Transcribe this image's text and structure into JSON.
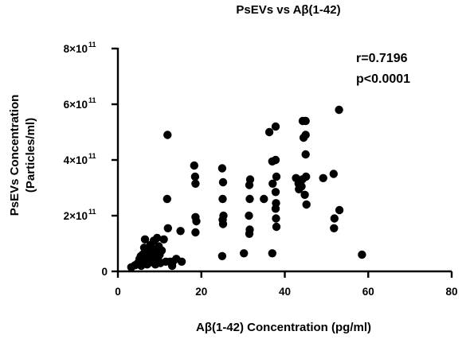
{
  "chart_data": {
    "type": "scatter",
    "title": "PsEVs vs Aβ(1-42)",
    "xlabel": "Aβ(1-42) Concentration (pg/ml)",
    "ylabel_line1": "PsEVs Concentration",
    "ylabel_line2": "(Particles/ml)",
    "xlim": [
      0,
      80
    ],
    "ylim": [
      0,
      800000000000.0
    ],
    "x_ticks": [
      {
        "value": 0,
        "label": "0"
      },
      {
        "value": 20,
        "label": "20"
      },
      {
        "value": 40,
        "label": "40"
      },
      {
        "value": 60,
        "label": "60"
      },
      {
        "value": 80,
        "label": "80"
      }
    ],
    "y_ticks": [
      {
        "value": 0,
        "label": "0",
        "exp": ""
      },
      {
        "value": 200000000000.0,
        "label": "2×10",
        "exp": "11"
      },
      {
        "value": 400000000000.0,
        "label": "4×10",
        "exp": "11"
      },
      {
        "value": 600000000000.0,
        "label": "6×10",
        "exp": "11"
      },
      {
        "value": 800000000000.0,
        "label": "8×10",
        "exp": "11"
      }
    ],
    "annotations": {
      "r": "r=0.7196",
      "p": "p<0.0001"
    },
    "grid": false,
    "points": [
      [
        3.2,
        15000000000.0
      ],
      [
        4.1,
        22000000000.0
      ],
      [
        4.8,
        30000000000.0
      ],
      [
        5.2,
        45000000000.0
      ],
      [
        5.5,
        55000000000.0
      ],
      [
        5.6,
        20000000000.0
      ],
      [
        5.9,
        60000000000.0
      ],
      [
        6.1,
        35000000000.0
      ],
      [
        6.3,
        85000000000.0
      ],
      [
        6.5,
        115000000000.0
      ],
      [
        6.6,
        40000000000.0
      ],
      [
        6.8,
        55000000000.0
      ],
      [
        7.0,
        25000000000.0
      ],
      [
        7.2,
        70000000000.0
      ],
      [
        7.4,
        30000000000.0
      ],
      [
        7.6,
        45000000000.0
      ],
      [
        7.8,
        95000000000.0
      ],
      [
        8.0,
        60000000000.0
      ],
      [
        8.2,
        35000000000.0
      ],
      [
        8.4,
        80000000000.0
      ],
      [
        8.6,
        110000000000.0
      ],
      [
        8.8,
        50000000000.0
      ],
      [
        9.0,
        25000000000.0
      ],
      [
        9.2,
        70000000000.0
      ],
      [
        9.4,
        120000000000.0
      ],
      [
        9.6,
        45000000000.0
      ],
      [
        9.8,
        90000000000.0
      ],
      [
        10.0,
        60000000000.0
      ],
      [
        10.2,
        30000000000.0
      ],
      [
        10.5,
        75000000000.0
      ],
      [
        11.0,
        115000000000.0
      ],
      [
        11.5,
        35000000000.0
      ],
      [
        11.8,
        260000000000.0
      ],
      [
        11.9,
        490000000000.0
      ],
      [
        12.0,
        155000000000.0
      ],
      [
        12.5,
        35000000000.0
      ],
      [
        13.0,
        20000000000.0
      ],
      [
        13.2,
        35000000000.0
      ],
      [
        14.0,
        45000000000.0
      ],
      [
        15.0,
        145000000000.0
      ],
      [
        15.3,
        35000000000.0
      ],
      [
        18.3,
        380000000000.0
      ],
      [
        18.5,
        340000000000.0
      ],
      [
        18.6,
        315000000000.0
      ],
      [
        18.6,
        195000000000.0
      ],
      [
        18.8,
        180000000000.0
      ],
      [
        18.6,
        140000000000.0
      ],
      [
        25.0,
        370000000000.0
      ],
      [
        25.2,
        320000000000.0
      ],
      [
        25.1,
        260000000000.0
      ],
      [
        25.3,
        200000000000.0
      ],
      [
        25.1,
        185000000000.0
      ],
      [
        25.2,
        170000000000.0
      ],
      [
        25.0,
        55000000000.0
      ],
      [
        30.2,
        65000000000.0
      ],
      [
        31.7,
        330000000000.0
      ],
      [
        31.5,
        310000000000.0
      ],
      [
        31.6,
        260000000000.0
      ],
      [
        31.4,
        200000000000.0
      ],
      [
        31.6,
        150000000000.0
      ],
      [
        31.5,
        135000000000.0
      ],
      [
        35.0,
        260000000000.0
      ],
      [
        36.3,
        500000000000.0
      ],
      [
        37.0,
        395000000000.0
      ],
      [
        37.1,
        315000000000.0
      ],
      [
        37.0,
        65000000000.0
      ],
      [
        37.8,
        520000000000.0
      ],
      [
        37.8,
        400000000000.0
      ],
      [
        38.0,
        340000000000.0
      ],
      [
        37.8,
        285000000000.0
      ],
      [
        37.9,
        245000000000.0
      ],
      [
        37.8,
        225000000000.0
      ],
      [
        37.9,
        190000000000.0
      ],
      [
        38.0,
        160000000000.0
      ],
      [
        42.7,
        335000000000.0
      ],
      [
        43.3,
        315000000000.0
      ],
      [
        43.4,
        295000000000.0
      ],
      [
        44.3,
        540000000000.0
      ],
      [
        44.2,
        330000000000.0
      ],
      [
        44.0,
        305000000000.0
      ],
      [
        44.5,
        480000000000.0
      ],
      [
        44.8,
        275000000000.0
      ],
      [
        45.0,
        540000000000.0
      ],
      [
        45.0,
        490000000000.0
      ],
      [
        45.0,
        420000000000.0
      ],
      [
        45.1,
        340000000000.0
      ],
      [
        45.2,
        240000000000.0
      ],
      [
        49.2,
        335000000000.0
      ],
      [
        51.7,
        350000000000.0
      ],
      [
        51.9,
        190000000000.0
      ],
      [
        51.8,
        155000000000.0
      ],
      [
        53.0,
        580000000000.0
      ],
      [
        53.1,
        220000000000.0
      ],
      [
        58.5,
        60000000000.0
      ]
    ]
  }
}
